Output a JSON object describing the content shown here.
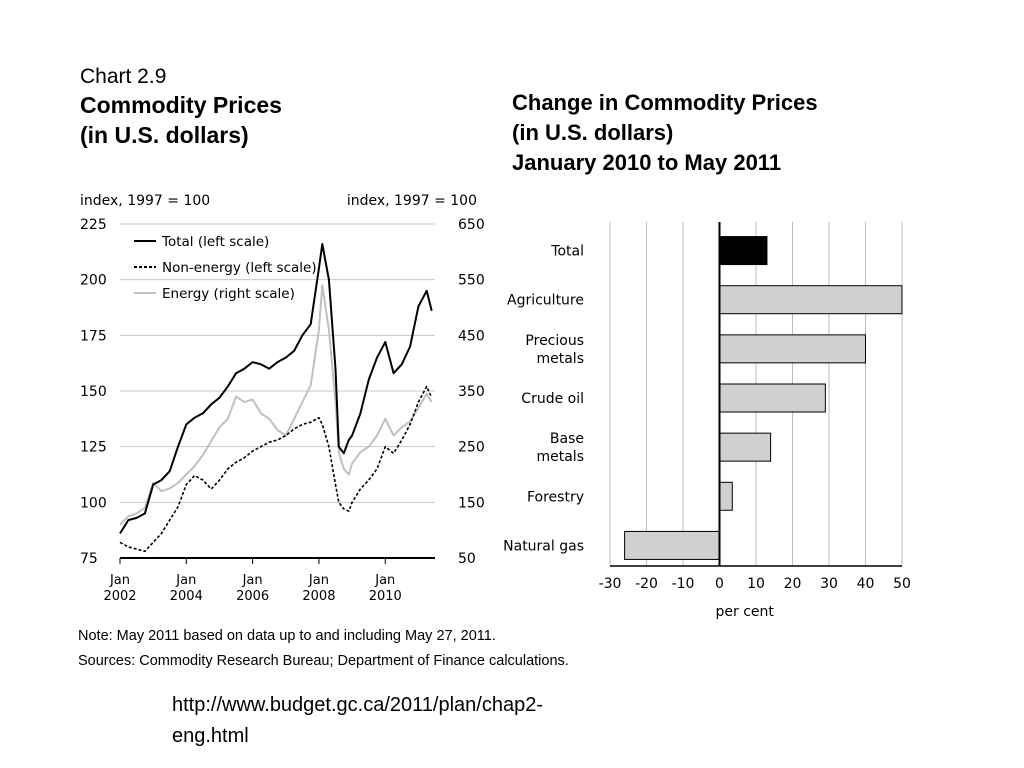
{
  "left_chart": {
    "caption": "Chart 2.9",
    "title_line1": "Commodity Prices",
    "title_line2": "(in U.S. dollars)",
    "left_axis_label": "index, 1997 = 100",
    "right_axis_label": "index, 1997 = 100",
    "note": "Note: May 2011 based on data up to and including May 27, 2011.",
    "sources": "Sources: Commodity Research Bureau; Department of Finance calculations."
  },
  "right_chart": {
    "title_line1": "Change in Commodity Prices",
    "title_line2": "(in U.S. dollars)",
    "title_line3": "January 2010 to May 2011"
  },
  "footer": {
    "url_line1": "http://www.budget.gc.ca/2011/plan/chap2-",
    "url_line2": "eng.html"
  },
  "colors": {
    "total": "#000000",
    "non_energy": "#000000",
    "energy": "#c0c0c0",
    "bar_total": "#000000",
    "bar_other": "#d0d0d0"
  },
  "chart_data": [
    {
      "type": "line",
      "title": "Commodity Prices (in U.S. dollars)",
      "ylabel": "index, 1997 = 100",
      "y2label": "index, 1997 = 100",
      "ylim": [
        75,
        225
      ],
      "y2lim": [
        50,
        650
      ],
      "yticks": [
        75,
        100,
        125,
        150,
        175,
        200,
        225
      ],
      "y2ticks": [
        50,
        150,
        250,
        350,
        450,
        550,
        650
      ],
      "xlim": [
        2002.0,
        2011.5
      ],
      "xticks": [
        {
          "value": 2002,
          "label1": "Jan",
          "label2": "2002"
        },
        {
          "value": 2004,
          "label1": "Jan",
          "label2": "2004"
        },
        {
          "value": 2006,
          "label1": "Jan",
          "label2": "2006"
        },
        {
          "value": 2008,
          "label1": "Jan",
          "label2": "2008"
        },
        {
          "value": 2010,
          "label1": "Jan",
          "label2": "2010"
        }
      ],
      "grid": "horizontal",
      "legend": "top-left",
      "series": [
        {
          "name": "Total (left scale)",
          "axis": "left",
          "style": "solid",
          "x": [
            2002.0,
            2002.25,
            2002.5,
            2002.75,
            2003.0,
            2003.25,
            2003.5,
            2003.75,
            2004.0,
            2004.25,
            2004.5,
            2004.75,
            2005.0,
            2005.25,
            2005.5,
            2005.75,
            2006.0,
            2006.25,
            2006.5,
            2006.75,
            2007.0,
            2007.25,
            2007.5,
            2007.75,
            2008.0,
            2008.1,
            2008.3,
            2008.5,
            2008.6,
            2008.75,
            2008.9,
            2009.0,
            2009.25,
            2009.5,
            2009.75,
            2010.0,
            2010.25,
            2010.5,
            2010.75,
            2011.0,
            2011.25,
            2011.4
          ],
          "y": [
            86,
            92,
            93,
            95,
            108,
            110,
            114,
            125,
            135,
            138,
            140,
            144,
            147,
            152,
            158,
            160,
            163,
            162,
            160,
            163,
            165,
            168,
            175,
            180,
            205,
            216,
            200,
            160,
            125,
            122,
            128,
            130,
            140,
            155,
            165,
            172,
            158,
            162,
            170,
            188,
            195,
            186
          ]
        },
        {
          "name": "Non-energy (left scale)",
          "axis": "left",
          "style": "dashed",
          "x": [
            2002.0,
            2002.25,
            2002.5,
            2002.75,
            2003.0,
            2003.25,
            2003.5,
            2003.75,
            2004.0,
            2004.25,
            2004.5,
            2004.75,
            2005.0,
            2005.25,
            2005.5,
            2005.75,
            2006.0,
            2006.25,
            2006.5,
            2006.75,
            2007.0,
            2007.25,
            2007.5,
            2007.75,
            2008.0,
            2008.1,
            2008.3,
            2008.5,
            2008.6,
            2008.75,
            2008.9,
            2009.0,
            2009.25,
            2009.5,
            2009.75,
            2010.0,
            2010.25,
            2010.5,
            2010.75,
            2011.0,
            2011.25,
            2011.4
          ],
          "y": [
            82,
            80,
            79,
            78,
            82,
            86,
            92,
            98,
            108,
            112,
            110,
            106,
            110,
            115,
            118,
            120,
            123,
            125,
            127,
            128,
            130,
            133,
            135,
            136,
            138,
            135,
            125,
            108,
            100,
            97,
            96,
            100,
            106,
            110,
            115,
            125,
            122,
            128,
            135,
            145,
            152,
            147
          ]
        },
        {
          "name": "Energy (right scale)",
          "axis": "right",
          "style": "solid",
          "x": [
            2002.0,
            2002.25,
            2002.5,
            2002.75,
            2003.0,
            2003.25,
            2003.5,
            2003.75,
            2004.0,
            2004.25,
            2004.5,
            2004.75,
            2005.0,
            2005.25,
            2005.5,
            2005.75,
            2006.0,
            2006.25,
            2006.5,
            2006.75,
            2007.0,
            2007.25,
            2007.5,
            2007.75,
            2008.0,
            2008.1,
            2008.3,
            2008.5,
            2008.6,
            2008.75,
            2008.9,
            2009.0,
            2009.25,
            2009.5,
            2009.75,
            2010.0,
            2010.25,
            2010.5,
            2010.75,
            2011.0,
            2011.25,
            2011.4
          ],
          "y": [
            110,
            125,
            130,
            140,
            185,
            170,
            175,
            185,
            200,
            215,
            235,
            260,
            285,
            300,
            340,
            330,
            335,
            310,
            300,
            280,
            270,
            300,
            330,
            360,
            460,
            540,
            460,
            330,
            240,
            210,
            200,
            220,
            240,
            250,
            270,
            300,
            270,
            285,
            295,
            320,
            345,
            330
          ]
        }
      ]
    },
    {
      "type": "bar",
      "orientation": "horizontal",
      "title": "Change in Commodity Prices (in U.S. dollars) January 2010 to May 2011",
      "xlabel": "per cent",
      "xlim": [
        -30,
        50
      ],
      "xticks": [
        -30,
        -20,
        -10,
        0,
        10,
        20,
        30,
        40,
        50
      ],
      "grid": "vertical",
      "categories": [
        {
          "line1": "Total",
          "line2": ""
        },
        {
          "line1": "Agriculture",
          "line2": ""
        },
        {
          "line1": "Precious",
          "line2": "metals"
        },
        {
          "line1": "Crude oil",
          "line2": ""
        },
        {
          "line1": "Base",
          "line2": "metals"
        },
        {
          "line1": "Forestry",
          "line2": ""
        },
        {
          "line1": "Natural gas",
          "line2": ""
        }
      ],
      "values": [
        13,
        50,
        40,
        29,
        14,
        3.5,
        -26
      ]
    }
  ]
}
